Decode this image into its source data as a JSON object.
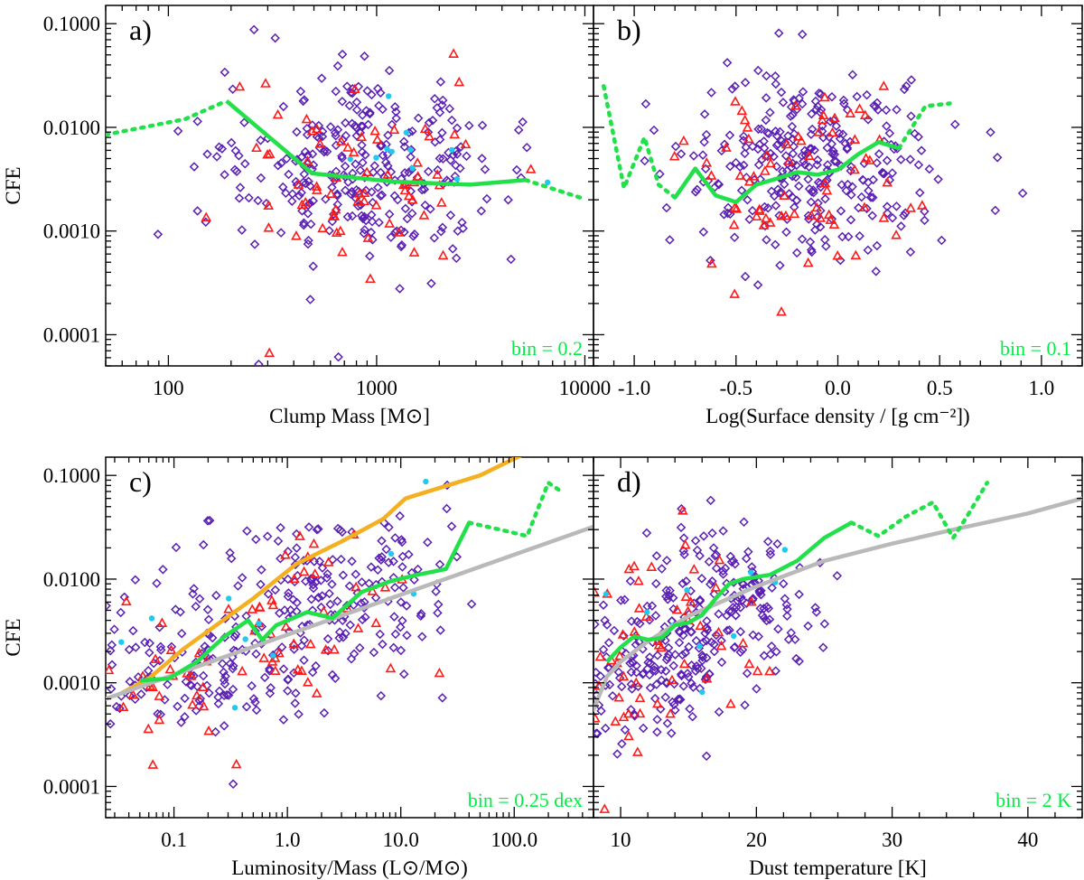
{
  "colors": {
    "diamond": "#5a1fb3",
    "triangle": "#ff1a1a",
    "cyan": "#22c8ee",
    "green": "#22e04a",
    "orange": "#f5b021",
    "gray": "#b9b9b9"
  },
  "chart_data": [
    {
      "type": "scatter",
      "panel_label": "a)",
      "title": "",
      "xlabel": "Clump Mass [M⊙]",
      "ylabel": "CFE",
      "xscale": "log",
      "yscale": "log",
      "xlim": [
        50,
        11000
      ],
      "ylim": [
        5e-05,
        0.15
      ],
      "xticks": [
        100,
        1000,
        10000
      ],
      "xticklabels": [
        "100",
        "1000",
        "10000"
      ],
      "yticks": [
        0.0001,
        0.001,
        0.01,
        0.1
      ],
      "yticklabels": [
        "0.0001",
        "0.0010",
        "0.0100",
        "0.1000"
      ],
      "bin_label": "bin = 0.2",
      "cloud": {
        "centers": [
          [
            850,
            0.004
          ]
        ],
        "spread_x": 0.32,
        "spread_y": 0.45,
        "n_diamond": 300,
        "n_triangle": 70,
        "n_cyan": 11,
        "tri_shift_x": 0,
        "tri_shift_y": -0.15
      },
      "running_median": {
        "solid_x": [
          190,
          490,
          1200,
          2800,
          5200
        ],
        "solid_y": [
          0.018,
          0.0036,
          0.003,
          0.0028,
          0.0031
        ],
        "dotted_x": [
          [
            50,
            120,
            190
          ],
          [
            5200,
            9500
          ]
        ],
        "dotted_y": [
          [
            0.0085,
            0.012,
            0.018
          ],
          [
            0.0031,
            0.0021
          ]
        ]
      },
      "extra_lines": []
    },
    {
      "type": "scatter",
      "panel_label": "b)",
      "title": "",
      "xlabel": "Log(Surface density / [g cm⁻²])",
      "ylabel": "",
      "xscale": "linear",
      "yscale": "log",
      "xlim": [
        -1.2,
        1.2
      ],
      "ylim": [
        5e-05,
        0.15
      ],
      "xticks": [
        -1.0,
        -0.5,
        0.0,
        0.5,
        1.0
      ],
      "xticklabels": [
        "-1.0",
        "-0.5",
        "0.0",
        "0.5",
        "1.0"
      ],
      "yticks": [
        0.0001,
        0.001,
        0.01,
        0.1
      ],
      "yticklabels": [],
      "bin_label": "bin = 0.1",
      "cloud": {
        "centers": [
          [
            -0.15,
            0.004
          ]
        ],
        "spread_x": 0.3,
        "spread_y": 0.45,
        "n_diamond": 300,
        "n_triangle": 70,
        "n_cyan": 11,
        "tri_shift_x": 0,
        "tri_shift_y": -0.15
      },
      "running_median": {
        "solid_x": [
          -0.8,
          -0.7,
          -0.6,
          -0.5,
          -0.4,
          -0.3,
          -0.2,
          -0.1,
          0.0,
          0.1,
          0.2,
          0.3
        ],
        "solid_y": [
          0.0021,
          0.004,
          0.0022,
          0.0019,
          0.0028,
          0.0032,
          0.0037,
          0.0035,
          0.0039,
          0.0055,
          0.0072,
          0.0063
        ],
        "dotted_x": [
          [
            -1.15,
            -1.05,
            -0.95,
            -0.88,
            -0.8
          ],
          [
            0.3,
            0.43,
            0.55
          ]
        ],
        "dotted_y": [
          [
            0.025,
            0.0026,
            0.008,
            0.0028,
            0.0021
          ],
          [
            0.0063,
            0.016,
            0.017
          ]
        ]
      },
      "extra_lines": []
    },
    {
      "type": "scatter",
      "panel_label": "c)",
      "title": "",
      "xlabel": "Luminosity/Mass (L⊙/M⊙)",
      "ylabel": "CFE",
      "xscale": "log",
      "yscale": "log",
      "xlim": [
        0.025,
        500
      ],
      "ylim": [
        5e-05,
        0.15
      ],
      "xticks": [
        0.1,
        1.0,
        10.0,
        100.0
      ],
      "xticklabels": [
        "0.1",
        "1.0",
        "10.0",
        "100.0"
      ],
      "yticks": [
        0.0001,
        0.001,
        0.01,
        0.1
      ],
      "yticklabels": [
        "0.0001",
        "0.0010",
        "0.0100",
        "0.1000"
      ],
      "bin_label": "bin = 0.25 dex",
      "cloud": {
        "centers": [
          [
            0.15,
            0.0016
          ],
          [
            3.0,
            0.008
          ]
        ],
        "spread_x": 0.55,
        "spread_y": 0.38,
        "n_diamond": 330,
        "n_triangle": 80,
        "n_cyan": 10,
        "tri_shift_x": -0.9,
        "tri_shift_y": -0.25
      },
      "running_median": {
        "solid_x": [
          0.05,
          0.09,
          0.16,
          0.28,
          0.45,
          0.6,
          0.8,
          1.5,
          2.5,
          4.5,
          8.0,
          14.0,
          25.0,
          40.0
        ],
        "solid_y": [
          0.00105,
          0.0011,
          0.0016,
          0.0028,
          0.004,
          0.0026,
          0.0036,
          0.0048,
          0.0042,
          0.0075,
          0.0095,
          0.011,
          0.0125,
          0.035
        ],
        "dotted_x": [
          [
            40.0,
            75.0,
            130.0,
            200.0,
            260.0
          ]
        ],
        "dotted_y": [
          [
            0.035,
            0.03,
            0.026,
            0.085,
            0.07
          ]
        ]
      },
      "extra_lines": [
        {
          "color_key": "orange",
          "x": [
            0.035,
            0.06,
            0.12,
            0.5,
            1.2,
            3.0,
            7.0,
            11.0,
            50.0,
            120.0
          ],
          "y": [
            0.0008,
            0.0011,
            0.0021,
            0.0065,
            0.014,
            0.023,
            0.038,
            0.06,
            0.1,
            0.16
          ]
        },
        {
          "color_key": "gray",
          "x": [
            0.025,
            500.0
          ],
          "y": [
            0.0007,
            0.032
          ]
        }
      ]
    },
    {
      "type": "scatter",
      "panel_label": "d)",
      "title": "",
      "xlabel": "Dust temperature [K]",
      "ylabel": "",
      "xscale": "linear",
      "yscale": "log",
      "xlim": [
        8,
        44
      ],
      "ylim": [
        5e-05,
        0.15
      ],
      "xticks": [
        10,
        20,
        30,
        40
      ],
      "xticklabels": [
        "10",
        "20",
        "30",
        "40"
      ],
      "yticks": [
        0.0001,
        0.001,
        0.01,
        0.1
      ],
      "yticklabels": [],
      "bin_label": "bin = 2 K",
      "cloud": {
        "centers": [
          [
            11.5,
            0.0013
          ],
          [
            18.0,
            0.006
          ]
        ],
        "spread_x": 3.2,
        "spread_y": 0.38,
        "n_diamond": 330,
        "n_triangle": 80,
        "n_cyan": 10,
        "tri_shift_x": -1.8,
        "tri_shift_y": -0.15
      },
      "running_median": {
        "solid_x": [
          9,
          10,
          11,
          12,
          13,
          14,
          15,
          16,
          17,
          18,
          19,
          21,
          23,
          25,
          27
        ],
        "solid_y": [
          0.0016,
          0.0022,
          0.0028,
          0.0026,
          0.0027,
          0.0036,
          0.0038,
          0.0045,
          0.0065,
          0.009,
          0.01,
          0.011,
          0.015,
          0.025,
          0.035
        ],
        "dotted_x": [
          [
            27,
            29,
            31,
            33,
            34.5,
            35.5,
            37
          ]
        ],
        "dotted_y": [
          [
            0.035,
            0.026,
            0.04,
            0.055,
            0.025,
            0.04,
            0.085
          ]
        ]
      },
      "extra_lines": [
        {
          "color_key": "gray",
          "x": [
            8,
            9,
            10,
            12,
            15,
            20,
            25,
            30,
            35,
            40,
            44
          ],
          "y": [
            0.00055,
            0.00115,
            0.0016,
            0.0025,
            0.0044,
            0.0085,
            0.015,
            0.022,
            0.031,
            0.043,
            0.06
          ]
        }
      ]
    }
  ]
}
